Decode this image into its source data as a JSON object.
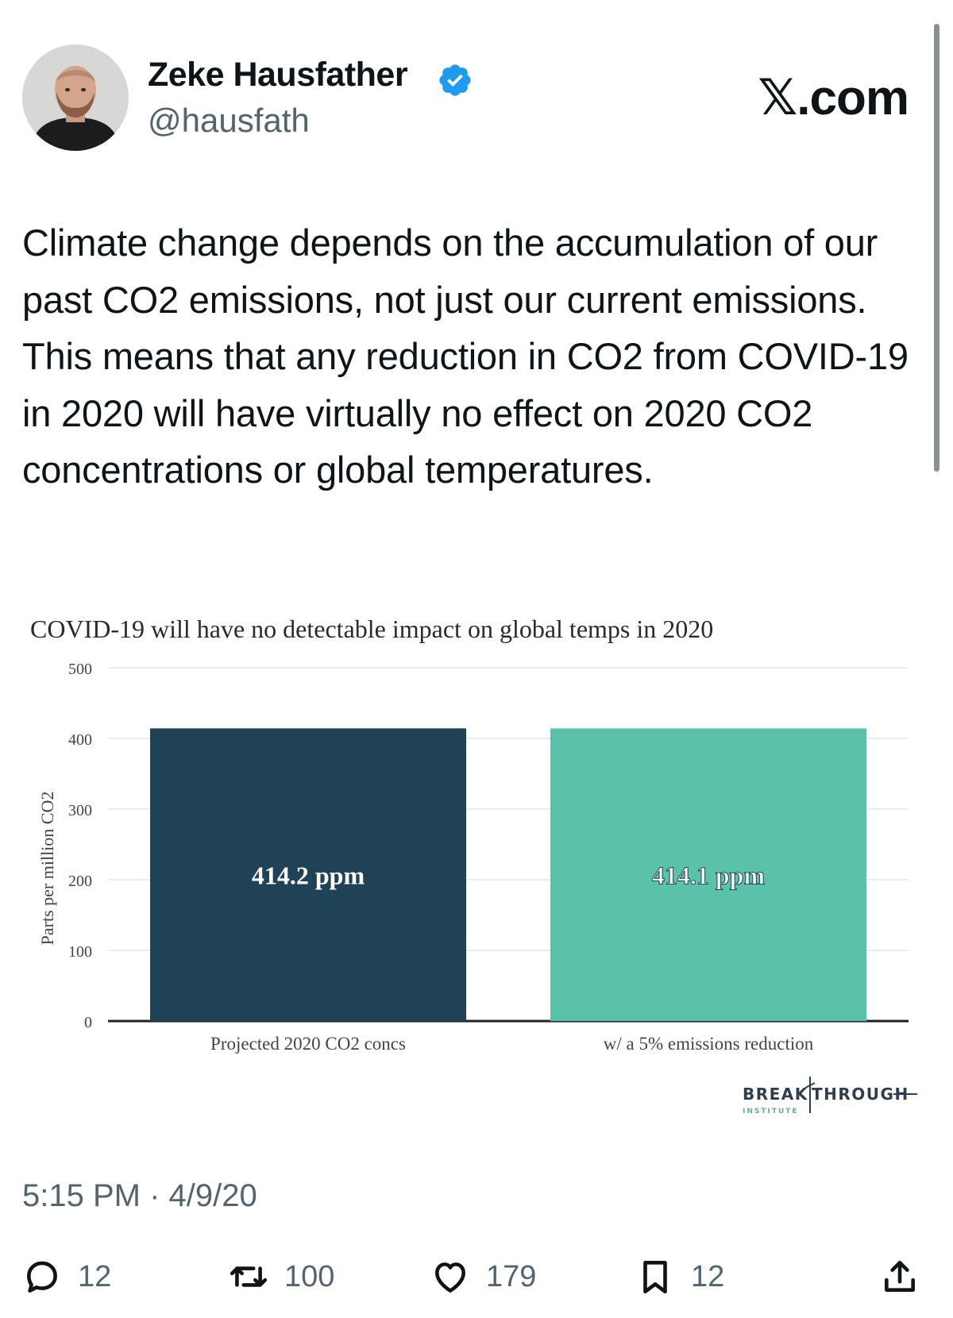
{
  "brand": "𝕏.com",
  "author": {
    "name": "Zeke Hausfather",
    "handle": "@hausfath",
    "verified": true
  },
  "tweet": {
    "text": "Climate change depends on the accumulation of our past CO2 emissions, not just our current emissions. This means that any reduction in CO2 from COVID-19 in 2020 will have virtually no effect on 2020 CO2 concentrations or global temperatures.",
    "timestamp": "5:15 PM · 4/9/20"
  },
  "actions": {
    "replies": "12",
    "reposts": "100",
    "likes": "179",
    "bookmarks": "12"
  },
  "chart_data": {
    "type": "bar",
    "title": "COVID-19 will have no detectable impact on global temps in 2020",
    "ylabel": "Parts per million CO2",
    "xlabel": "",
    "ylim": [
      0,
      500
    ],
    "yticks": [
      0,
      100,
      200,
      300,
      400,
      500
    ],
    "grid": true,
    "categories": [
      "Projected 2020 CO2 concs",
      "w/ a 5% emissions reduction"
    ],
    "values": [
      414.2,
      414.1
    ],
    "data_labels": [
      "414.2 ppm",
      "414.1 ppm"
    ],
    "colors": [
      "#1f4257",
      "#5bc2aa"
    ],
    "source_logo": "BREAKTHROUGH INSTITUTE"
  },
  "colors": {
    "verified": "#1d9bf0",
    "muted": "#536471"
  },
  "icons": [
    "reply-icon",
    "repost-icon",
    "like-icon",
    "bookmark-icon",
    "share-icon",
    "verified-badge-icon"
  ]
}
